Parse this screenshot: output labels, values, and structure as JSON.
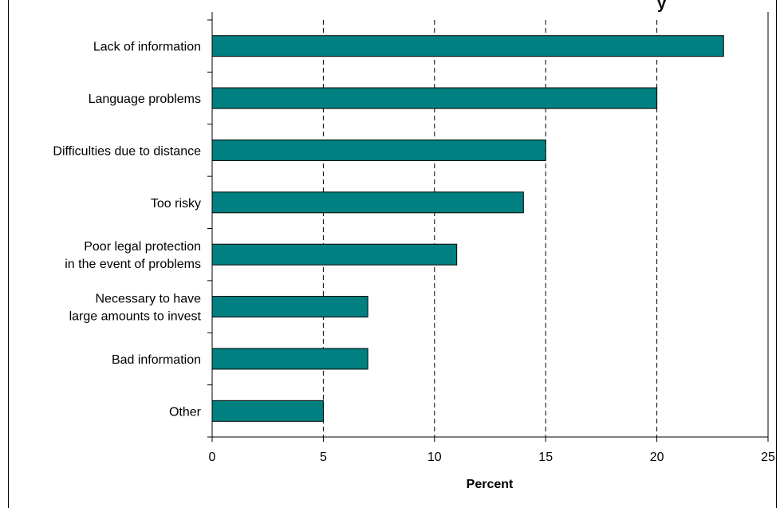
{
  "chart_data": {
    "type": "bar",
    "orientation": "horizontal",
    "title": "y",
    "xlabel": "Percent",
    "ylabel": "",
    "categories": [
      "Lack of information",
      "Language problems",
      "Difficulties due to distance",
      "Too risky",
      "Poor legal protection\nin the event of problems",
      "Necessary to have\nlarge amounts to invest",
      "Bad information",
      "Other"
    ],
    "values": [
      23,
      20,
      15,
      14,
      11,
      7,
      7,
      5
    ],
    "xlim": [
      0,
      25
    ],
    "xticks": [
      0,
      5,
      10,
      15,
      20,
      25
    ],
    "grid": "vertical dashed",
    "legend": "none",
    "colors": {
      "bar_fill": "#008080",
      "bar_stroke": "#000000",
      "grid": "#000000",
      "frame": "#000000"
    }
  }
}
